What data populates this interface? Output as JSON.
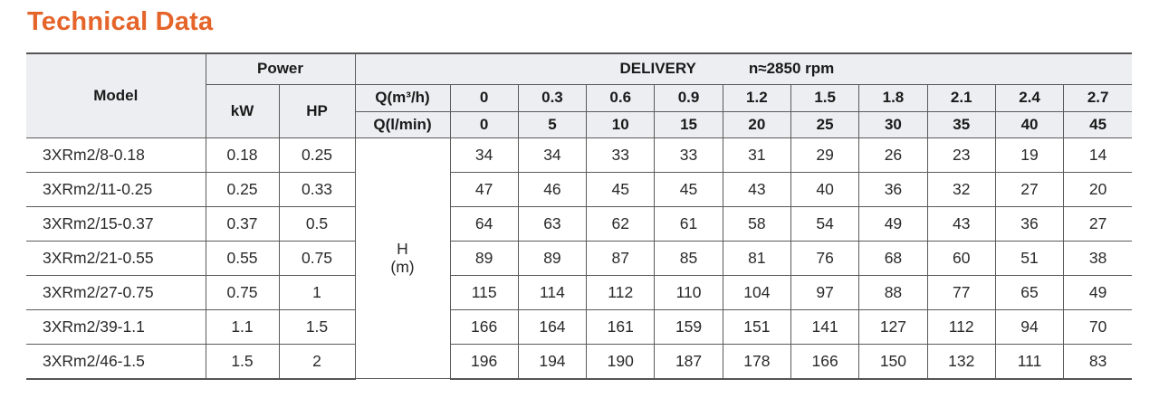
{
  "title": "Technical Data",
  "header": {
    "model": "Model",
    "power": "Power",
    "kw": "kW",
    "hp": "HP",
    "delivery": "DELIVERY",
    "speed": "n≈2850 rpm",
    "q_m3h_label": "Q(m³/h)",
    "q_lmin_label": "Q(l/min)",
    "q_m3h": [
      "0",
      "0.3",
      "0.6",
      "0.9",
      "1.2",
      "1.5",
      "1.8",
      "2.1",
      "2.4",
      "2.7"
    ],
    "q_lmin": [
      "0",
      "5",
      "10",
      "15",
      "20",
      "25",
      "30",
      "35",
      "40",
      "45"
    ],
    "head_label": "H",
    "head_unit": "(m)"
  },
  "rows": [
    {
      "model": "3XRm2/8-0.18",
      "kw": "0.18",
      "hp": "0.25",
      "h": [
        "34",
        "34",
        "33",
        "33",
        "31",
        "29",
        "26",
        "23",
        "19",
        "14"
      ]
    },
    {
      "model": "3XRm2/11-0.25",
      "kw": "0.25",
      "hp": "0.33",
      "h": [
        "47",
        "46",
        "45",
        "45",
        "43",
        "40",
        "36",
        "32",
        "27",
        "20"
      ]
    },
    {
      "model": "3XRm2/15-0.37",
      "kw": "0.37",
      "hp": "0.5",
      "h": [
        "64",
        "63",
        "62",
        "61",
        "58",
        "54",
        "49",
        "43",
        "36",
        "27"
      ]
    },
    {
      "model": "3XRm2/21-0.55",
      "kw": "0.55",
      "hp": "0.75",
      "h": [
        "89",
        "89",
        "87",
        "85",
        "81",
        "76",
        "68",
        "60",
        "51",
        "38"
      ]
    },
    {
      "model": "3XRm2/27-0.75",
      "kw": "0.75",
      "hp": "1",
      "h": [
        "115",
        "114",
        "112",
        "110",
        "104",
        "97",
        "88",
        "77",
        "65",
        "49"
      ]
    },
    {
      "model": "3XRm2/39-1.1",
      "kw": "1.1",
      "hp": "1.5",
      "h": [
        "166",
        "164",
        "161",
        "159",
        "151",
        "141",
        "127",
        "112",
        "94",
        "70"
      ]
    },
    {
      "model": "3XRm2/46-1.5",
      "kw": "1.5",
      "hp": "2",
      "h": [
        "196",
        "194",
        "190",
        "187",
        "178",
        "166",
        "150",
        "132",
        "111",
        "83"
      ]
    }
  ],
  "colors": {
    "title": "#e5642a",
    "header_bg": "#eceef1",
    "border": "#5a5a5a"
  }
}
